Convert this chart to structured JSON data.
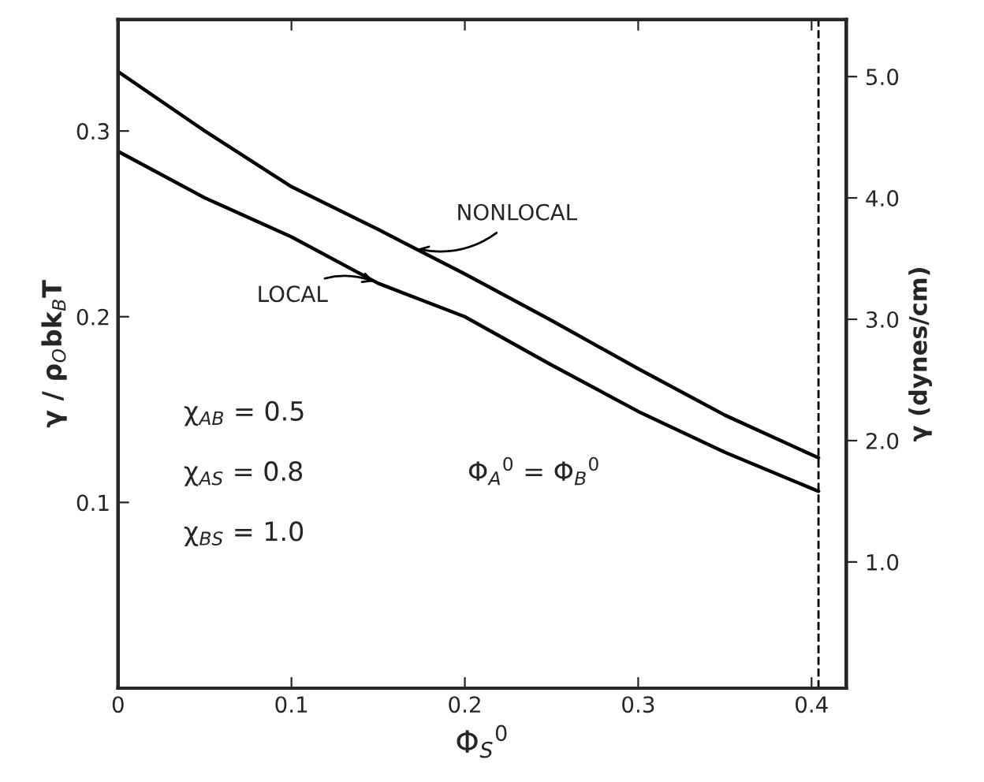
{
  "chart_data": {
    "type": "line",
    "xlabel": "Φ$_{S}$$^{0}$",
    "ylabel": "γ / ρ$_{O}$bk$_{B}$T",
    "y2label": "γ (dynes/cm)",
    "x": [
      0,
      0.05,
      0.1,
      0.15,
      0.2,
      0.25,
      0.3,
      0.35,
      0.404
    ],
    "series": [
      {
        "color": "#000000",
        "values": [
          0.332,
          0.3,
          0.27,
          0.247,
          0.223,
          0.198,
          0.172,
          0.147,
          0.124
        ]
      },
      {
        "color": "#000000",
        "values": [
          0.289,
          0.264,
          0.243,
          0.218,
          0.2,
          0.174,
          0.149,
          0.127,
          0.106
        ]
      }
    ],
    "xlim": [
      0,
      0.42
    ],
    "ylim": [
      0,
      0.36
    ],
    "y2lim": [
      -0.04,
      5.47
    ],
    "xticks": [
      0,
      0.1,
      0.2,
      0.3,
      0.4
    ],
    "yticks": [
      0.1,
      0.2,
      0.3
    ],
    "y2ticks": [
      {
        "value": 1,
        "label": "1.0"
      },
      {
        "value": 2,
        "label": "2.0"
      },
      {
        "value": 3,
        "label": "3.0"
      },
      {
        "value": 4,
        "label": "4.0"
      },
      {
        "value": 5,
        "label": "5.0"
      }
    ],
    "ref_lines": [
      {
        "axis": "x",
        "value": 0.404,
        "color": "#000000",
        "line_style": "dashed"
      }
    ],
    "annotations": [
      {
        "text": "NONLOCAL",
        "x": 0.17,
        "y": 0.237
      },
      {
        "text": "LOCAL",
        "x": 0.15,
        "y": 0.218
      },
      "χ$_{AB}$ = 0.5",
      "χ$_{AS}$ = 0.8",
      "χ$_{BS}$ = 1.0",
      "Φ$_{A}$$^{0}$ = Φ$_{B}$$^{0}$"
    ],
    "grid": false,
    "legend": false,
    "marker": "none",
    "line_style": "solid"
  }
}
